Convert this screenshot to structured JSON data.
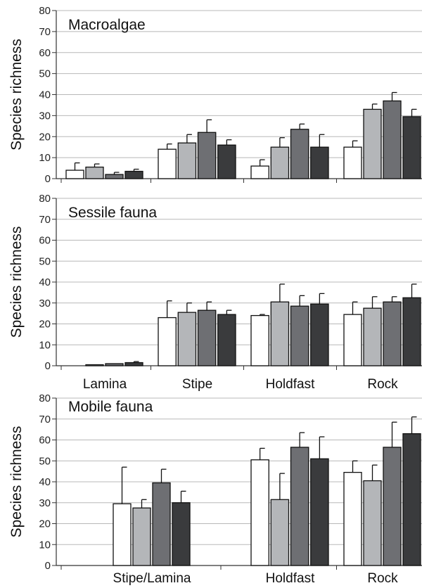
{
  "chart_data": [
    {
      "type": "bar",
      "title": "Macroalgae",
      "ylabel": "Species richness",
      "ylim": [
        0,
        80
      ],
      "yticks": [
        0,
        10,
        20,
        30,
        40,
        50,
        60,
        70,
        80
      ],
      "grid": true,
      "categories": [
        "Lamina",
        "Stipe",
        "Holdfast",
        "Rock"
      ],
      "show_category_labels": false,
      "series_colors": [
        "#ffffff",
        "#b4b6b9",
        "#6e6f73",
        "#3a3b3d"
      ],
      "series": [
        {
          "values": [
            4,
            14,
            6,
            15
          ],
          "errors": [
            3.5,
            2.5,
            3,
            3
          ]
        },
        {
          "values": [
            5.5,
            17,
            15,
            33
          ],
          "errors": [
            1.5,
            4,
            4.5,
            2.5
          ]
        },
        {
          "values": [
            2,
            22,
            23.5,
            37
          ],
          "errors": [
            1,
            6,
            2.5,
            4
          ]
        },
        {
          "values": [
            3.5,
            16,
            15,
            29.5
          ],
          "errors": [
            1,
            2.5,
            6,
            3.5
          ]
        }
      ]
    },
    {
      "type": "bar",
      "title": "Sessile fauna",
      "ylabel": "Species richness",
      "ylim": [
        0,
        80
      ],
      "yticks": [
        0,
        10,
        20,
        30,
        40,
        50,
        60,
        70,
        80
      ],
      "grid": true,
      "categories": [
        "Lamina",
        "Stipe",
        "Holdfast",
        "Rock"
      ],
      "show_category_labels": true,
      "series_colors": [
        "#ffffff",
        "#b4b6b9",
        "#6e6f73",
        "#3a3b3d"
      ],
      "series": [
        {
          "values": [
            0,
            23,
            24,
            24.5
          ],
          "errors": [
            0,
            8,
            0.5,
            6
          ]
        },
        {
          "values": [
            0.5,
            25.5,
            30.5,
            27.5
          ],
          "errors": [
            0,
            4.5,
            8.5,
            5.5
          ]
        },
        {
          "values": [
            1,
            26.5,
            28.5,
            30.5
          ],
          "errors": [
            0,
            4,
            5,
            2.5
          ]
        },
        {
          "values": [
            1.5,
            24.5,
            29.5,
            32.5
          ],
          "errors": [
            0.5,
            2,
            5,
            6.5
          ]
        }
      ]
    },
    {
      "type": "bar",
      "title": "Mobile fauna",
      "ylabel": "Species richness",
      "ylim": [
        0,
        80
      ],
      "yticks": [
        0,
        10,
        20,
        30,
        40,
        50,
        60,
        70,
        80
      ],
      "grid": true,
      "categories": [
        "Stipe/Lamina",
        "Holdfast",
        "Rock"
      ],
      "show_category_labels": true,
      "series_colors": [
        "#ffffff",
        "#b4b6b9",
        "#6e6f73",
        "#3a3b3d"
      ],
      "series": [
        {
          "values": [
            29.5,
            50.5,
            44.5
          ],
          "errors": [
            17.5,
            5.5,
            5.5
          ]
        },
        {
          "values": [
            27.5,
            31.5,
            40.5
          ],
          "errors": [
            4,
            12.5,
            7.5
          ]
        },
        {
          "values": [
            39.5,
            56.5,
            56.5
          ],
          "errors": [
            6.5,
            7,
            12
          ]
        },
        {
          "values": [
            30,
            51,
            63
          ],
          "errors": [
            5.5,
            10.5,
            8
          ]
        }
      ]
    }
  ]
}
